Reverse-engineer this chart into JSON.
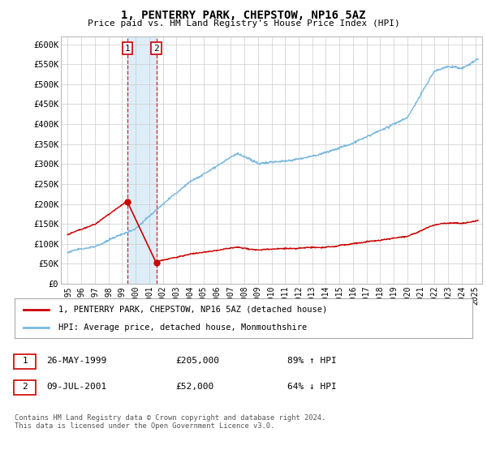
{
  "title": "1, PENTERRY PARK, CHEPSTOW, NP16 5AZ",
  "subtitle": "Price paid vs. HM Land Registry's House Price Index (HPI)",
  "ylabel_ticks": [
    "£0",
    "£50K",
    "£100K",
    "£150K",
    "£200K",
    "£250K",
    "£300K",
    "£350K",
    "£400K",
    "£450K",
    "£500K",
    "£550K",
    "£600K"
  ],
  "ytick_values": [
    0,
    50000,
    100000,
    150000,
    200000,
    250000,
    300000,
    350000,
    400000,
    450000,
    500000,
    550000,
    600000
  ],
  "xlim": [
    1994.5,
    2025.5
  ],
  "ylim": [
    0,
    620000
  ],
  "xtick_labels": [
    "1995",
    "1996",
    "1997",
    "1998",
    "1999",
    "2000",
    "2001",
    "2002",
    "2003",
    "2004",
    "2005",
    "2006",
    "2007",
    "2008",
    "2009",
    "2010",
    "2011",
    "2012",
    "2013",
    "2014",
    "2015",
    "2016",
    "2017",
    "2018",
    "2019",
    "2020",
    "2021",
    "2022",
    "2023",
    "2024",
    "2025"
  ],
  "xtick_values": [
    1995,
    1996,
    1997,
    1998,
    1999,
    2000,
    2001,
    2002,
    2003,
    2004,
    2005,
    2006,
    2007,
    2008,
    2009,
    2010,
    2011,
    2012,
    2013,
    2014,
    2015,
    2016,
    2017,
    2018,
    2019,
    2020,
    2021,
    2022,
    2023,
    2024,
    2025
  ],
  "hpi_color": "#7ab8e0",
  "price_color": "#cc0000",
  "transaction1_x": 1999.4,
  "transaction1_y": 205000,
  "transaction2_x": 2001.52,
  "transaction2_y": 52000,
  "transaction1_label": "1",
  "transaction2_label": "2",
  "shade_color": "#ddeef8",
  "legend_line1": "1, PENTERRY PARK, CHEPSTOW, NP16 5AZ (detached house)",
  "legend_line2": "HPI: Average price, detached house, Monmouthshire",
  "table_row1": [
    "1",
    "26-MAY-1999",
    "£205,000",
    "89% ↑ HPI"
  ],
  "table_row2": [
    "2",
    "09-JUL-2001",
    "£52,000",
    "64% ↓ HPI"
  ],
  "footer": "Contains HM Land Registry data © Crown copyright and database right 2024.\nThis data is licensed under the Open Government Licence v3.0.",
  "background_color": "#ffffff",
  "grid_color": "#cccccc"
}
